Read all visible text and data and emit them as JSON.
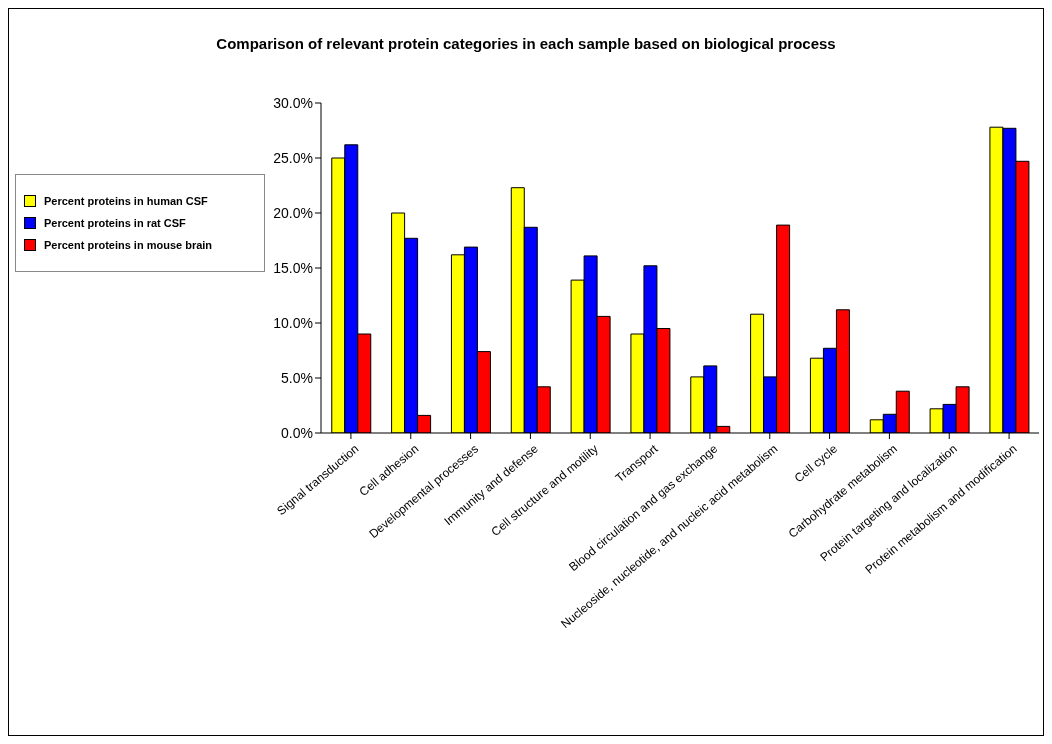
{
  "chart_data": {
    "type": "bar",
    "title": "Comparison of relevant protein categories in each sample based on biological process",
    "categories": [
      "Signal transduction",
      "Cell adhesion",
      "Developmental processes",
      "Immunity and defense",
      "Cell structure and motility",
      "Transport",
      "Blood circulation and gas exchange",
      "Nucleoside, nucleotide, and nucleic acid metabolism",
      "Cell cycle",
      "Carbohydrate metabolism",
      "Protein targeting and localization",
      "Protein metabolism and modification"
    ],
    "series": [
      {
        "name": "Percent proteins in human CSF",
        "color": "#ffff00",
        "values": [
          25.0,
          20.0,
          16.2,
          22.3,
          13.9,
          9.0,
          5.1,
          10.8,
          6.8,
          1.2,
          2.2,
          27.8
        ]
      },
      {
        "name": "Percent proteins in rat CSF",
        "color": "#0000ff",
        "values": [
          26.2,
          17.7,
          16.9,
          18.7,
          16.1,
          15.2,
          6.1,
          5.1,
          7.7,
          1.7,
          2.6,
          27.7
        ]
      },
      {
        "name": "Percent proteins in mouse brain",
        "color": "#ff0000",
        "values": [
          9.0,
          1.6,
          7.4,
          4.2,
          10.6,
          9.5,
          0.6,
          18.9,
          11.2,
          3.8,
          4.2,
          24.7
        ]
      }
    ],
    "ylim": [
      0,
      30
    ],
    "yticks": [
      {
        "value": 0,
        "label": "0.0%"
      },
      {
        "value": 5,
        "label": "5.0%"
      },
      {
        "value": 10,
        "label": "10.0%"
      },
      {
        "value": 15,
        "label": "15.0%"
      },
      {
        "value": 20,
        "label": "20.0%"
      },
      {
        "value": 25,
        "label": "25.0%"
      },
      {
        "value": 30,
        "label": "30.0%"
      }
    ],
    "legend": "left"
  }
}
